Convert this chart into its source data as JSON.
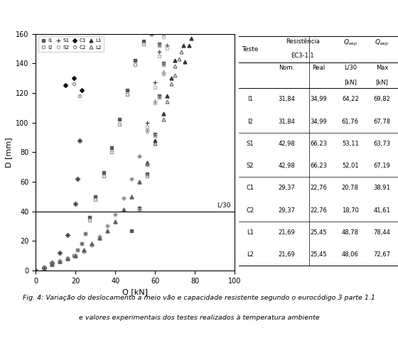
{
  "xlabel": "Q [kN]",
  "ylabel": "D [mm]",
  "xlim": [
    0,
    100
  ],
  "ylim": [
    0,
    160
  ],
  "L30_line": 40,
  "L30_label": "L/30",
  "legend_labels": [
    "I1",
    "I2",
    "S1",
    "S2",
    "C1",
    "C2",
    "L1",
    "L2"
  ],
  "series": {
    "I1": {
      "Q": [
        0,
        2,
        4,
        6,
        8,
        10,
        12,
        14,
        16,
        18,
        19,
        20,
        21,
        22,
        23,
        24,
        25,
        26,
        27,
        28,
        30,
        32,
        34,
        36,
        38,
        40,
        42,
        44,
        46,
        48,
        50,
        52,
        54,
        56,
        58,
        60,
        62,
        64,
        64,
        63,
        62,
        61,
        60,
        58,
        56,
        54,
        52,
        50,
        48,
        46
      ],
      "D": [
        0,
        1,
        2,
        3,
        4,
        5,
        6,
        7,
        8,
        9,
        10,
        12,
        14,
        16,
        18,
        21,
        25,
        30,
        36,
        42,
        50,
        58,
        66,
        74,
        83,
        92,
        102,
        112,
        122,
        132,
        142,
        150,
        155,
        158,
        160,
        158,
        153,
        148,
        140,
        130,
        118,
        105,
        92,
        78,
        65,
        52,
        42,
        34,
        27,
        22
      ]
    },
    "I2": {
      "Q": [
        0,
        2,
        4,
        6,
        8,
        10,
        12,
        14,
        16,
        18,
        19,
        20,
        21,
        22,
        23,
        24,
        25,
        26,
        27,
        28,
        30,
        32,
        34,
        36,
        38,
        40,
        42,
        44,
        46,
        48,
        50,
        52,
        54,
        56,
        58,
        60,
        62,
        64,
        64,
        63,
        62,
        61,
        60,
        58,
        56,
        54,
        52,
        50
      ],
      "D": [
        0,
        1,
        2,
        3,
        4,
        5,
        6,
        7,
        8,
        9,
        10,
        12,
        14,
        16,
        18,
        21,
        25,
        29,
        34,
        40,
        48,
        56,
        64,
        72,
        80,
        89,
        99,
        109,
        119,
        129,
        139,
        148,
        153,
        157,
        160,
        157,
        152,
        147,
        139,
        129,
        117,
        104,
        91,
        77,
        64,
        51,
        41,
        33
      ]
    },
    "S1": {
      "Q": [
        0,
        2,
        4,
        6,
        8,
        10,
        12,
        14,
        16,
        18,
        20,
        22,
        24,
        26,
        28,
        30,
        32,
        34,
        36,
        38,
        40,
        42,
        44,
        46,
        48,
        50,
        52,
        54,
        56,
        58,
        60,
        62,
        64,
        66,
        66,
        65,
        64,
        63,
        62,
        61,
        60,
        58,
        56,
        54
      ],
      "D": [
        0,
        1,
        2,
        3,
        4,
        5,
        6,
        7,
        8,
        9,
        10,
        11,
        13,
        15,
        17,
        20,
        23,
        26,
        30,
        34,
        38,
        43,
        49,
        55,
        62,
        69,
        77,
        86,
        95,
        104,
        114,
        124,
        134,
        144,
        152,
        158,
        160,
        155,
        148,
        138,
        127,
        114,
        100,
        86
      ]
    },
    "S2": {
      "Q": [
        0,
        2,
        4,
        6,
        8,
        10,
        12,
        14,
        16,
        18,
        20,
        22,
        24,
        26,
        28,
        30,
        32,
        34,
        36,
        38,
        40,
        42,
        44,
        46,
        48,
        50,
        52,
        54,
        56,
        58,
        60,
        62,
        64,
        66,
        66,
        65,
        64,
        63,
        62,
        61,
        60,
        58,
        56
      ],
      "D": [
        0,
        1,
        2,
        3,
        4,
        5,
        6,
        7,
        8,
        9,
        10,
        11,
        13,
        15,
        17,
        20,
        23,
        26,
        30,
        34,
        38,
        43,
        49,
        55,
        62,
        69,
        77,
        85,
        94,
        103,
        113,
        123,
        133,
        143,
        150,
        155,
        158,
        153,
        145,
        135,
        124,
        111,
        97
      ]
    },
    "C1": {
      "Q": [
        0,
        2,
        4,
        6,
        8,
        10,
        12,
        14,
        16,
        18,
        20,
        20.5,
        21,
        21.5,
        22,
        22.5,
        23,
        21,
        19,
        17,
        15
      ],
      "D": [
        0,
        1,
        2,
        3,
        5,
        8,
        12,
        17,
        24,
        34,
        45,
        52,
        62,
        74,
        88,
        104,
        122,
        130,
        130,
        128,
        125
      ]
    },
    "C2": {
      "Q": [
        0,
        2,
        4,
        6,
        8,
        10,
        12,
        14,
        16,
        18,
        20,
        20.5,
        21,
        21.5,
        22,
        22.5,
        22,
        21,
        19,
        17
      ],
      "D": [
        0,
        1,
        2,
        3,
        5,
        8,
        12,
        17,
        24,
        34,
        45,
        52,
        62,
        74,
        88,
        104,
        118,
        126,
        126,
        124
      ]
    },
    "L1": {
      "Q": [
        0,
        2,
        4,
        6,
        8,
        10,
        12,
        14,
        16,
        18,
        20,
        22,
        24,
        26,
        28,
        30,
        32,
        34,
        36,
        38,
        40,
        42,
        44,
        46,
        48,
        50,
        52,
        54,
        56,
        58,
        60,
        62,
        64,
        65,
        66,
        67,
        68,
        69,
        70,
        72,
        74,
        76,
        78,
        78,
        77,
        76,
        75
      ],
      "D": [
        0,
        1,
        2,
        3,
        4,
        5,
        6,
        7,
        8,
        9,
        10,
        12,
        14,
        16,
        18,
        20,
        22,
        24,
        27,
        30,
        33,
        37,
        41,
        45,
        50,
        55,
        60,
        66,
        73,
        80,
        88,
        96,
        106,
        112,
        118,
        124,
        130,
        136,
        142,
        148,
        152,
        155,
        157,
        156,
        152,
        147,
        141
      ]
    },
    "L2": {
      "Q": [
        0,
        2,
        4,
        6,
        8,
        10,
        12,
        14,
        16,
        18,
        20,
        22,
        24,
        26,
        28,
        30,
        32,
        34,
        36,
        38,
        40,
        42,
        44,
        46,
        48,
        50,
        52,
        54,
        56,
        58,
        60,
        62,
        64,
        65,
        66,
        67,
        68,
        69,
        70,
        72,
        73,
        73,
        72,
        71,
        70
      ],
      "D": [
        0,
        1,
        2,
        3,
        4,
        5,
        6,
        7,
        8,
        9,
        10,
        12,
        14,
        16,
        18,
        20,
        22,
        24,
        27,
        30,
        33,
        37,
        41,
        45,
        50,
        55,
        60,
        66,
        72,
        79,
        86,
        94,
        102,
        108,
        114,
        120,
        126,
        132,
        138,
        144,
        148,
        147,
        143,
        138,
        132
      ]
    }
  },
  "marker_styles": {
    "I1": {
      "color": "#555555",
      "marker": "s",
      "ms": 3.5,
      "mfc": "#555555",
      "mec": "#555555"
    },
    "I2": {
      "color": "#999999",
      "marker": "s",
      "ms": 3.5,
      "mfc": "none",
      "mec": "#999999"
    },
    "S1": {
      "color": "#555555",
      "marker": "+",
      "ms": 5.0,
      "mfc": "#555555",
      "mec": "#555555"
    },
    "S2": {
      "color": "#bbbbbb",
      "marker": "s",
      "ms": 3.5,
      "mfc": "none",
      "mec": "#bbbbbb"
    },
    "C1": {
      "color": "#111111",
      "marker": "D",
      "ms": 3.0,
      "mfc": "#111111",
      "mec": "#111111"
    },
    "C2": {
      "color": "#888888",
      "marker": "o",
      "ms": 3.0,
      "mfc": "none",
      "mec": "#888888"
    },
    "L1": {
      "color": "#333333",
      "marker": "^",
      "ms": 3.5,
      "mfc": "#333333",
      "mec": "#333333"
    },
    "L2": {
      "color": "#777777",
      "marker": "^",
      "ms": 3.5,
      "mfc": "none",
      "mec": "#777777"
    }
  },
  "table_rows": [
    [
      "I1",
      "31,84",
      "34,99",
      "64,22",
      "69,82"
    ],
    [
      "I2",
      "31,84",
      "34,99",
      "61,76",
      "67,78"
    ],
    [
      "S1",
      "42,98",
      "66,23",
      "53,11",
      "63,73"
    ],
    [
      "S2",
      "42,98",
      "66,23",
      "52,01",
      "67,19"
    ],
    [
      "C1",
      "29,37",
      "22,76",
      "20,78",
      "38,91"
    ],
    [
      "C2",
      "29,37",
      "22,76",
      "18,70",
      "41,61"
    ],
    [
      "L1",
      "21,69",
      "25,45",
      "48,78",
      "78,44"
    ],
    [
      "L2",
      "21,69",
      "25,45",
      "48,06",
      "72,67"
    ]
  ],
  "caption_line1": "Fig. 4: Variação do deslocamento a meio vão e capacidade resistente segundo o eurocódigo 3 parte 1.1",
  "caption_line2": "e valores experimentais dos testes realizados à temperatura ambiente"
}
